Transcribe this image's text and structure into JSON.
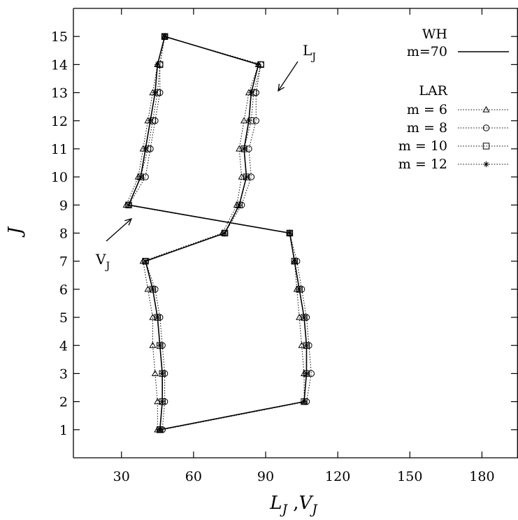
{
  "chart_data": {
    "type": "line",
    "title": "",
    "xlabel": "L_J ,V_J",
    "xlabel_parts": {
      "a_main": "L",
      "a_sub": "J",
      "sep": " ,",
      "b_main": "V",
      "b_sub": "J"
    },
    "ylabel": "J",
    "xlim": [
      10,
      195
    ],
    "ylim": [
      0,
      16
    ],
    "xticks": [
      30,
      60,
      90,
      120,
      150,
      180
    ],
    "yticks": [
      1,
      2,
      3,
      4,
      5,
      6,
      7,
      8,
      9,
      10,
      11,
      12,
      13,
      14,
      15
    ],
    "grid": false,
    "legend": {
      "placement": "top-right",
      "groups": [
        {
          "title": "WH",
          "entries": [
            {
              "label": "m=70",
              "style": "solid"
            }
          ]
        },
        {
          "title": "LAR",
          "entries": [
            {
              "label": "m =  6",
              "marker": "triangle",
              "style": "dotted"
            },
            {
              "label": "m =  8",
              "marker": "circle",
              "style": "dotted"
            },
            {
              "label": "m = 10",
              "marker": "square",
              "style": "dotted"
            },
            {
              "label": "m = 12",
              "marker": "star",
              "style": "dotted"
            }
          ]
        }
      ]
    },
    "annotations": [
      {
        "text_main": "L",
        "text_sub": "J"
      },
      {
        "text_main": "V",
        "text_sub": "J"
      }
    ],
    "J": [
      1,
      2,
      3,
      4,
      5,
      6,
      7,
      8,
      9,
      10,
      11,
      12,
      13,
      14,
      15
    ],
    "series": [
      {
        "name": "WH m=70",
        "quantity": "L",
        "style": "solid",
        "marker": "none",
        "x": [
          46,
          47,
          47,
          46,
          45,
          43,
          40,
          73,
          79,
          82,
          81,
          83,
          84,
          87,
          48
        ]
      },
      {
        "name": "WH m=70",
        "quantity": "V",
        "style": "solid",
        "marker": "none",
        "x": [
          46,
          106,
          107,
          107,
          106,
          104,
          102,
          100,
          33,
          38,
          40,
          42,
          44,
          45,
          48
        ]
      },
      {
        "name": "m =  6",
        "quantity": "L",
        "style": "dotted",
        "marker": "triangle",
        "x": [
          45,
          45,
          44,
          43,
          43,
          41,
          39,
          72,
          78,
          80,
          79,
          81,
          83,
          87,
          48
        ]
      },
      {
        "name": "m =  6",
        "quantity": "V",
        "style": "dotted",
        "marker": "triangle",
        "x": [
          46,
          106,
          106,
          105,
          104,
          103,
          102,
          100,
          32,
          37,
          39,
          41,
          43,
          45,
          48
        ]
      },
      {
        "name": "m =  8",
        "quantity": "L",
        "style": "dotted",
        "marker": "circle",
        "x": [
          47,
          48,
          48,
          47,
          46,
          44,
          40,
          73,
          80,
          84,
          83,
          86,
          86,
          88,
          48
        ]
      },
      {
        "name": "m =  8",
        "quantity": "V",
        "style": "dotted",
        "marker": "circle",
        "x": [
          47,
          107,
          109,
          108,
          107,
          105,
          103,
          100,
          33,
          40,
          42,
          44,
          46,
          46,
          48
        ]
      },
      {
        "name": "m = 10",
        "quantity": "L",
        "style": "dotted",
        "marker": "square",
        "x": [
          46,
          47,
          47,
          46,
          45,
          43,
          40,
          73,
          79,
          82,
          81,
          84,
          85,
          88,
          48
        ]
      },
      {
        "name": "m = 10",
        "quantity": "V",
        "style": "dotted",
        "marker": "square",
        "x": [
          46,
          106,
          107,
          107,
          106,
          104,
          102,
          100,
          33,
          38,
          41,
          43,
          45,
          46,
          48
        ]
      },
      {
        "name": "m = 12",
        "quantity": "L",
        "style": "dotted",
        "marker": "star",
        "x": [
          46,
          47,
          47,
          46,
          45,
          43,
          40,
          73,
          79,
          82,
          81,
          83,
          84,
          87,
          48
        ]
      },
      {
        "name": "m = 12",
        "quantity": "V",
        "style": "dotted",
        "marker": "star",
        "x": [
          46,
          106,
          107,
          107,
          106,
          104,
          102,
          100,
          33,
          38,
          40,
          42,
          44,
          45,
          48
        ]
      }
    ]
  }
}
